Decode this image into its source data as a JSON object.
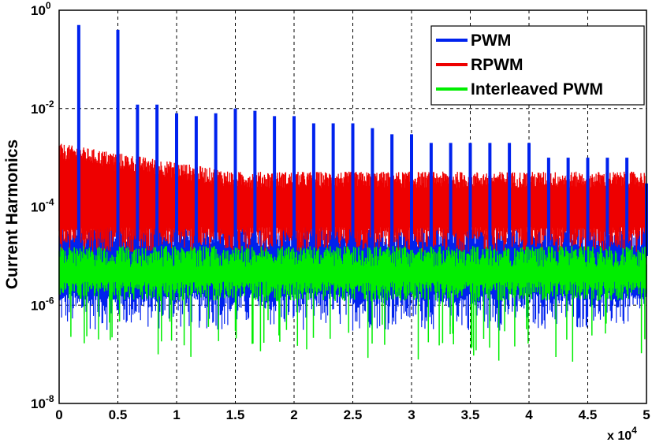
{
  "chart_data": {
    "type": "line",
    "title": "",
    "xlabel": "",
    "ylabel": "Current Harmonics",
    "x_multiplier_label": "x 10",
    "x_multiplier_exp": "4",
    "xlim": [
      0,
      5
    ],
    "ylim": [
      1e-08,
      1
    ],
    "y_scale": "log",
    "x_ticks": [
      "0",
      "0.5",
      "1",
      "1.5",
      "2",
      "2.5",
      "3",
      "3.5",
      "4",
      "4.5",
      "5"
    ],
    "y_ticks": [
      {
        "base": "10",
        "exp": "-8"
      },
      {
        "base": "10",
        "exp": "-6"
      },
      {
        "base": "10",
        "exp": "-4"
      },
      {
        "base": "10",
        "exp": "-2"
      },
      {
        "base": "10",
        "exp": "0"
      }
    ],
    "grid": "dashed",
    "legend_position": "top-right",
    "series": [
      {
        "name": "PWM",
        "color": "#0022ee",
        "spikes_x": [
          0.167,
          0.5,
          0.667,
          0.833,
          1.0,
          1.167,
          1.333,
          1.5,
          1.667,
          1.833,
          2.0,
          2.167,
          2.333,
          2.5,
          2.667,
          2.833,
          3.0,
          3.167,
          3.333,
          3.5,
          3.667,
          3.833,
          4.0,
          4.167,
          4.333,
          4.5,
          4.667,
          4.833,
          5.0
        ],
        "spikes_y": [
          0.5,
          0.4,
          0.012,
          0.012,
          0.008,
          0.007,
          0.008,
          0.01,
          0.009,
          0.007,
          0.007,
          0.005,
          0.005,
          0.005,
          0.004,
          0.003,
          0.003,
          0.002,
          0.002,
          0.002,
          0.002,
          0.002,
          0.002,
          0.001,
          0.001,
          0.001,
          0.001,
          0.001,
          0.0003
        ],
        "floor_low": 1e-06,
        "floor_high": 3e-05
      },
      {
        "name": "RPWM",
        "color": "#ee0000",
        "band_low": 3e-05,
        "band_high_start": 0.0015,
        "band_high_end": 0.0004
      },
      {
        "name": "Interleaved PWM",
        "color": "#00ee00",
        "band_low": 1e-06,
        "band_high": 1e-05
      }
    ]
  }
}
